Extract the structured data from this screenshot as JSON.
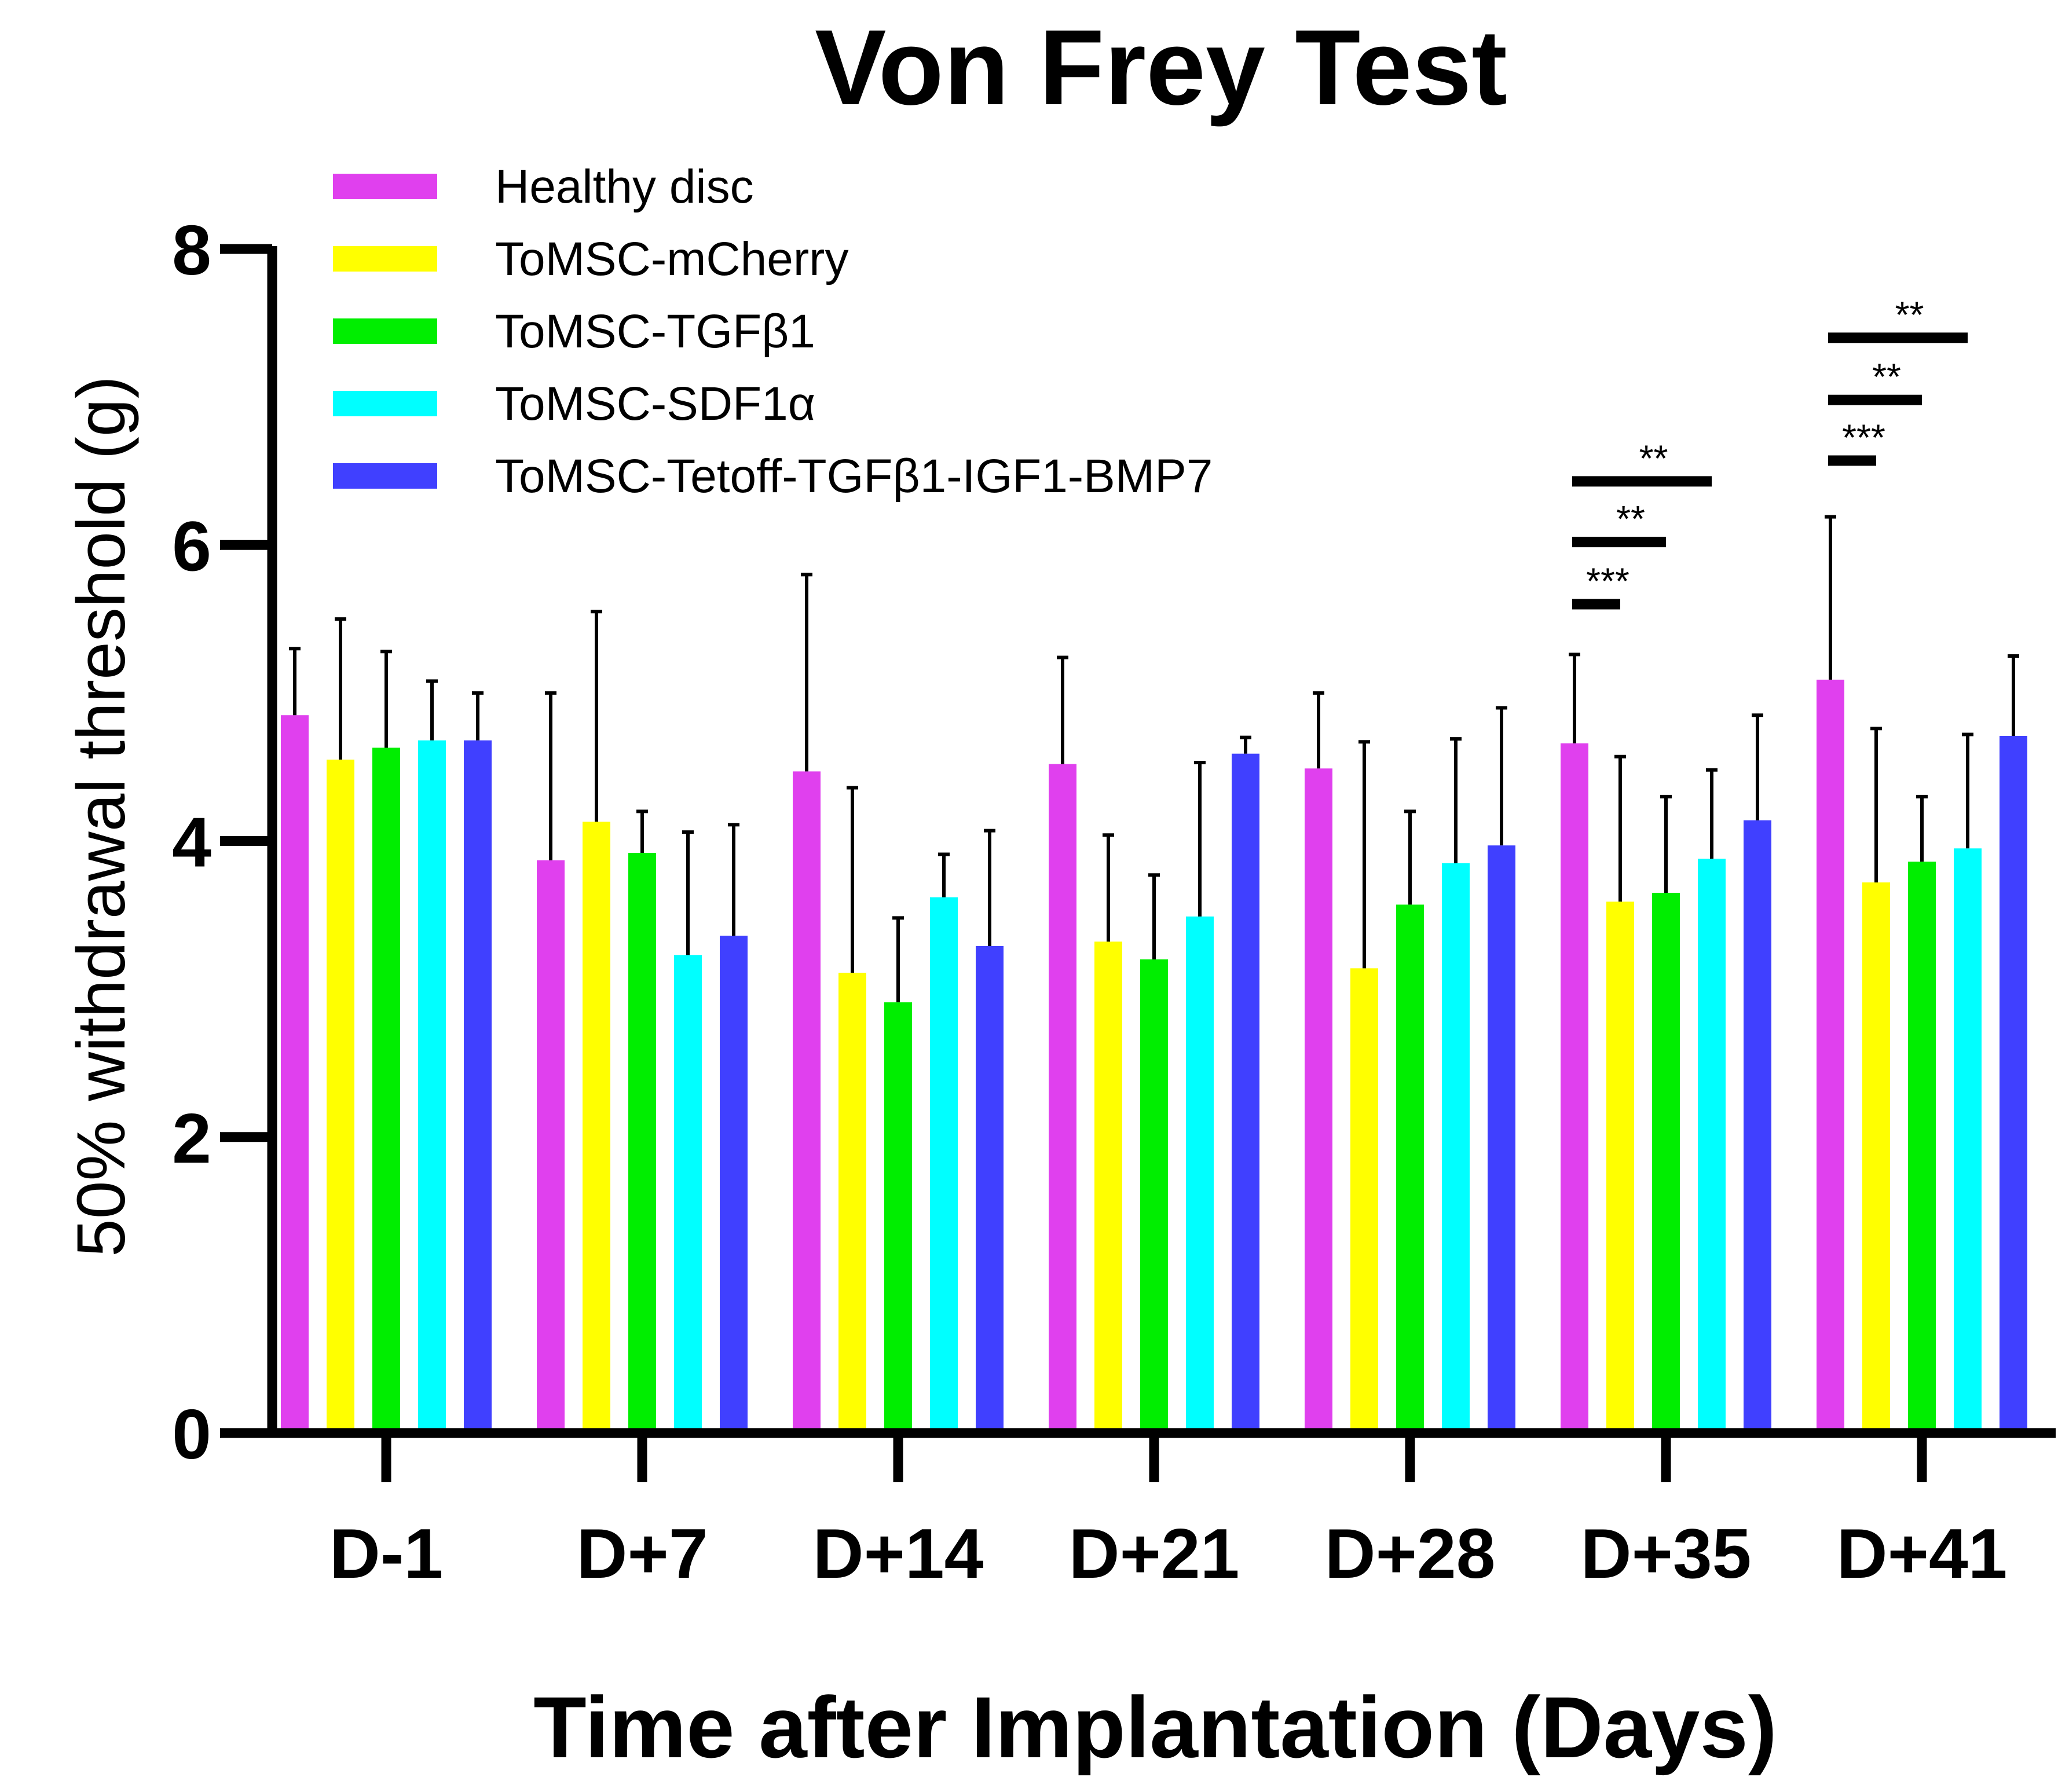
{
  "chart_data": {
    "type": "bar",
    "title": "Von Frey Test",
    "xlabel": "Time after Implantation (Days)",
    "ylabel": "50% withdrawal threshold (g)",
    "ylim": [
      0,
      8
    ],
    "yticks": [
      "0",
      "2",
      "4",
      "6",
      "8"
    ],
    "categories": [
      "D-1",
      "D+7",
      "D+14",
      "D+21",
      "D+28",
      "D+35",
      "D+41"
    ],
    "legend_position": "top-left",
    "series": [
      {
        "name": "Healthy disc",
        "color": "#e040ee",
        "values": [
          4.85,
          3.87,
          4.47,
          4.52,
          4.49,
          4.66,
          5.09
        ],
        "errors": [
          0.45,
          1.13,
          1.33,
          0.72,
          0.51,
          0.6,
          1.1
        ]
      },
      {
        "name": "ToMSC-mCherry",
        "color": "#ffff00",
        "values": [
          4.55,
          4.13,
          3.11,
          3.32,
          3.14,
          3.59,
          3.72
        ],
        "errors": [
          0.95,
          1.42,
          1.25,
          0.72,
          1.53,
          0.98,
          1.04
        ]
      },
      {
        "name": "ToMSC-TGFβ1",
        "color": "#00ee00",
        "values": [
          4.63,
          3.92,
          2.91,
          3.2,
          3.57,
          3.65,
          3.86
        ],
        "errors": [
          0.65,
          0.28,
          0.57,
          0.57,
          0.63,
          0.65,
          0.44
        ]
      },
      {
        "name": "ToMSC-SDF1α",
        "color": "#00ffff",
        "values": [
          4.68,
          3.23,
          3.62,
          3.49,
          3.85,
          3.88,
          3.95
        ],
        "errors": [
          0.4,
          0.83,
          0.29,
          1.04,
          0.84,
          0.6,
          0.77
        ]
      },
      {
        "name": "ToMSC-Tetoff-TGFβ1-IGF1-BMP7",
        "color": "#4040ff",
        "values": [
          4.68,
          3.36,
          3.29,
          4.59,
          3.97,
          4.14,
          4.71
        ],
        "errors": [
          0.32,
          0.75,
          0.78,
          0.11,
          0.93,
          0.71,
          0.54
        ]
      }
    ],
    "significance": [
      {
        "category": "D+35",
        "from_series": 0,
        "to_series": 1,
        "y": 5.6,
        "label": "***"
      },
      {
        "category": "D+35",
        "from_series": 0,
        "to_series": 2,
        "y": 6.02,
        "label": "**"
      },
      {
        "category": "D+35",
        "from_series": 0,
        "to_series": 3,
        "y": 6.43,
        "label": "**"
      },
      {
        "category": "D+41",
        "from_series": 0,
        "to_series": 1,
        "y": 6.57,
        "label": "***"
      },
      {
        "category": "D+41",
        "from_series": 0,
        "to_series": 2,
        "y": 6.98,
        "label": "**"
      },
      {
        "category": "D+41",
        "from_series": 0,
        "to_series": 3,
        "y": 7.4,
        "label": "**"
      }
    ]
  }
}
